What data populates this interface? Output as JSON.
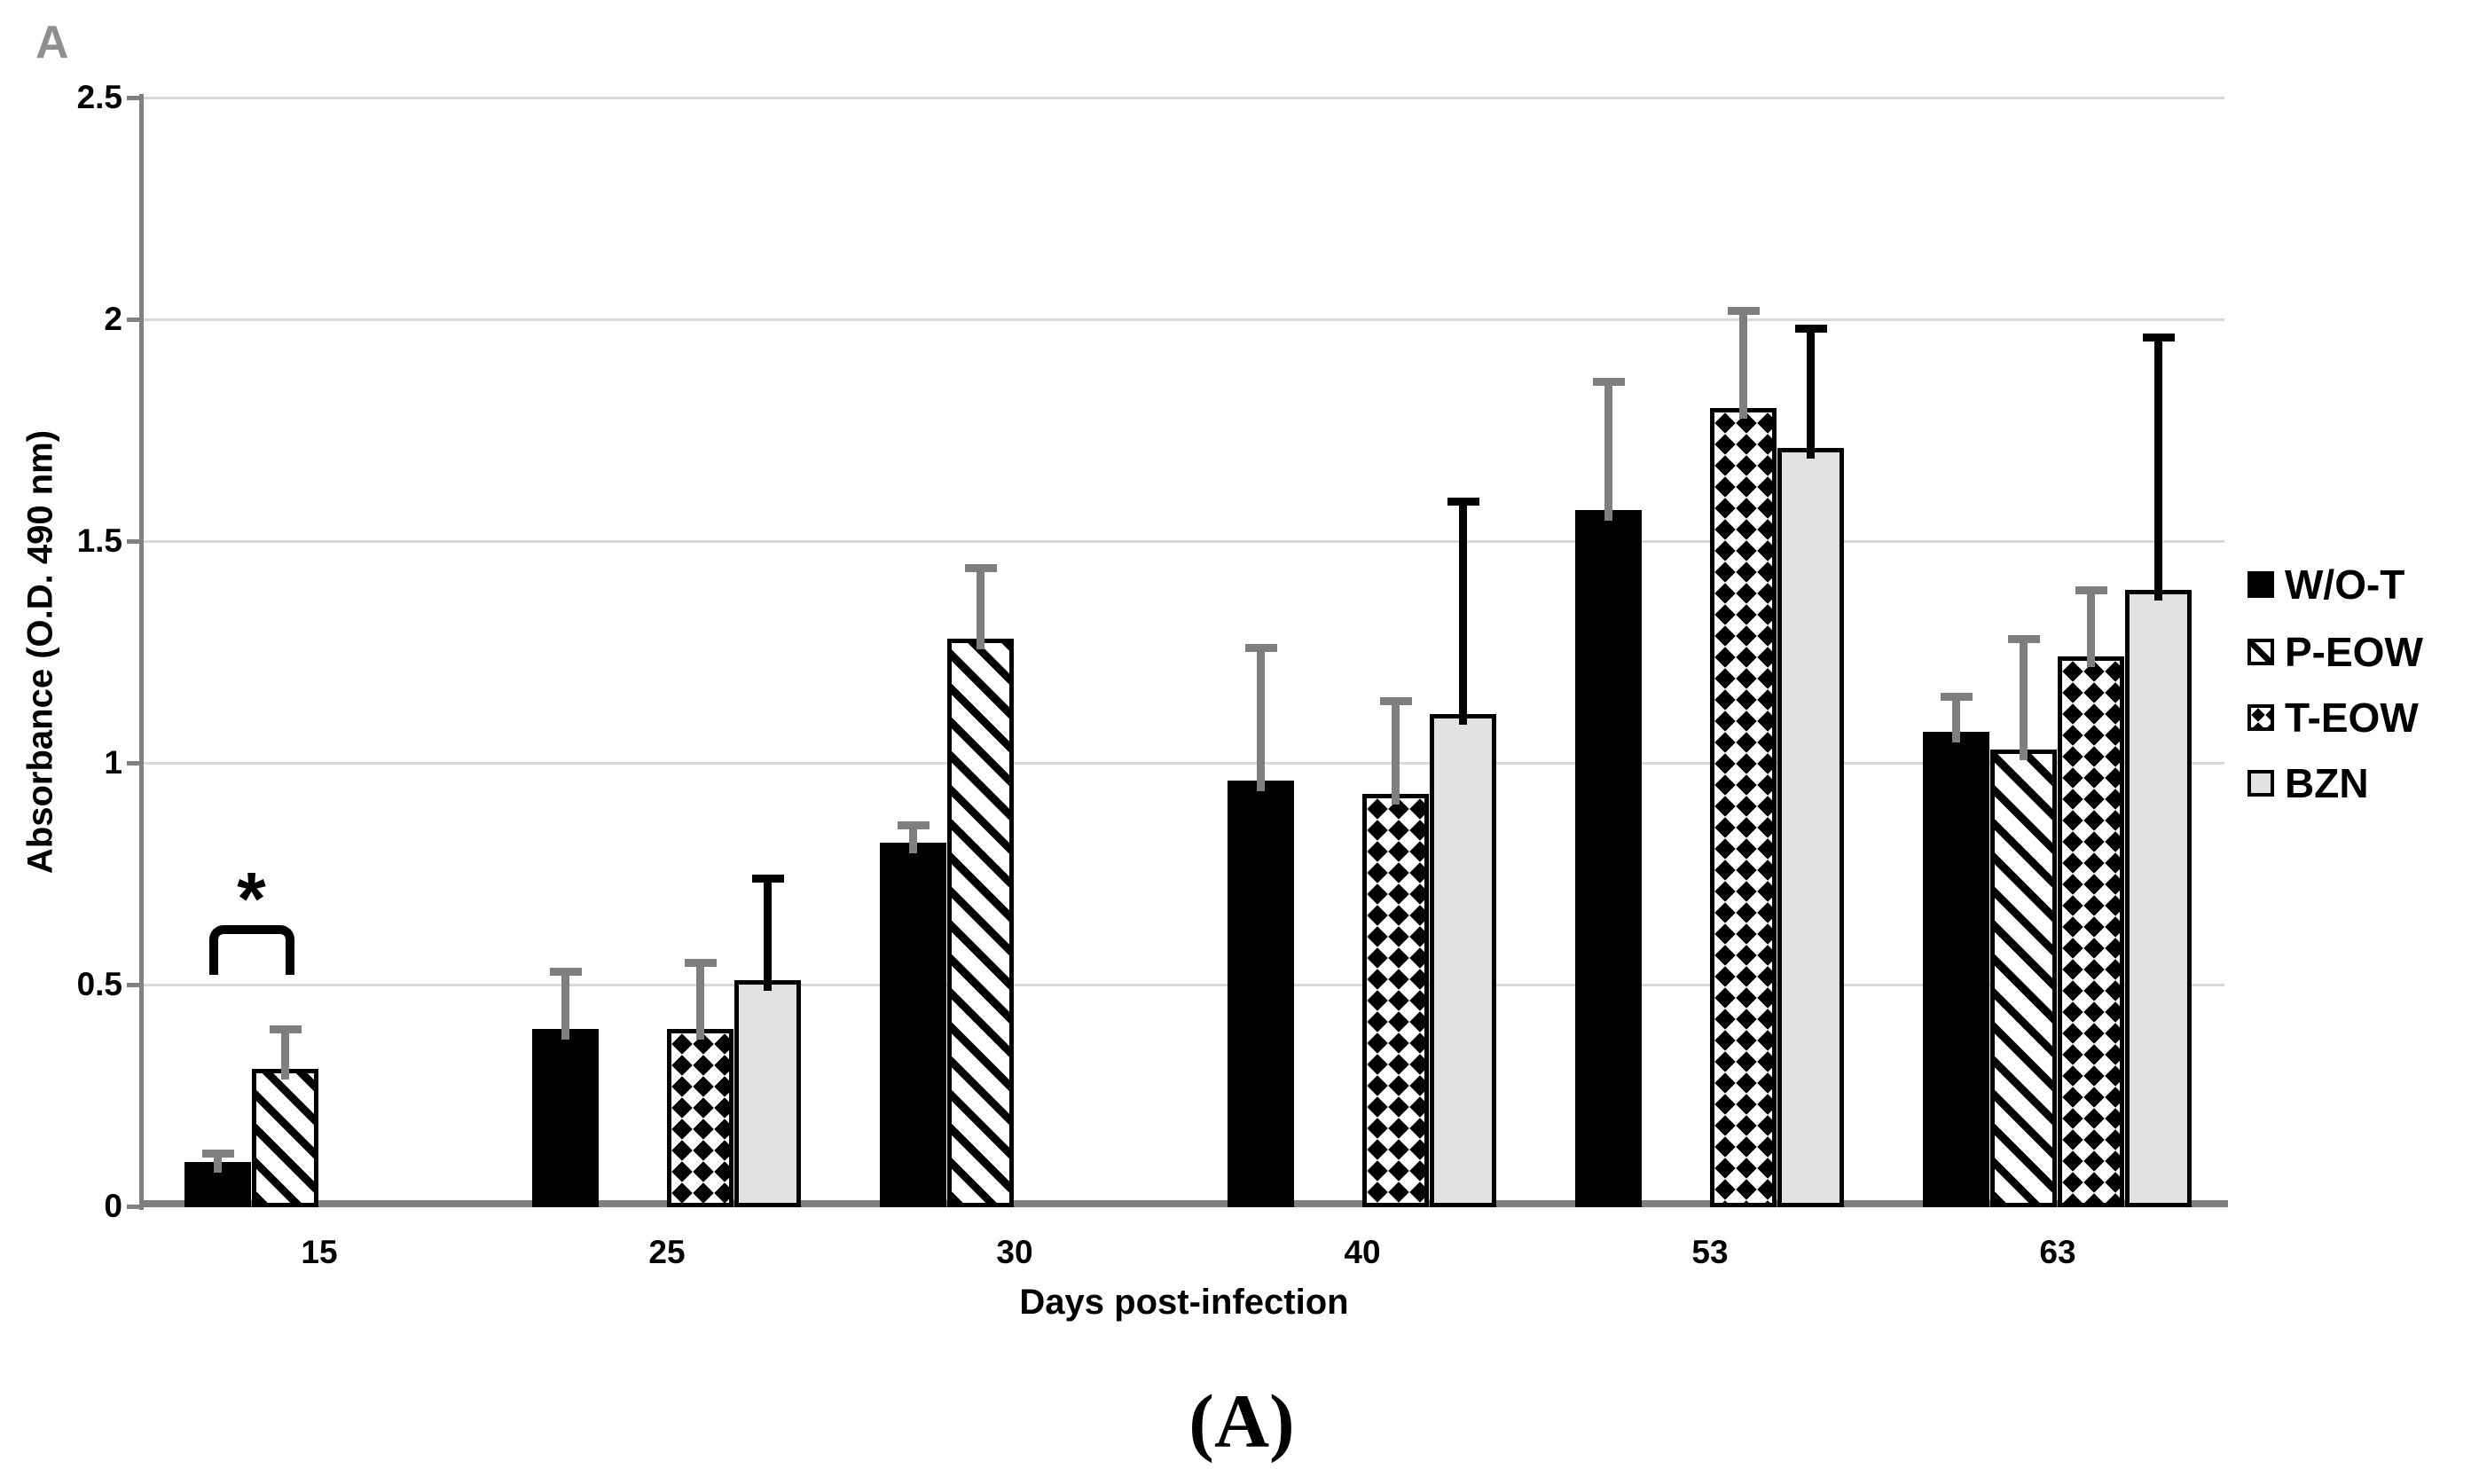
{
  "panel_label": "A",
  "caption": "(A)",
  "colors": {
    "background": "#ffffff",
    "axis": "#7f7f7f",
    "gridline": "#d9d9d9",
    "panel_letter": "#8f8f8f",
    "bar_black": "#000000",
    "bzn_fill": "#e2e2e2",
    "error_gray": "#7f7f7f",
    "error_black": "#000000"
  },
  "chart_data": {
    "type": "bar",
    "title": "",
    "xlabel": "Days post-infection",
    "ylabel": "Absorbance (O.D. 490 nm)",
    "categories": [
      "15",
      "25",
      "30",
      "40",
      "53",
      "63"
    ],
    "y_ticks": [
      "0",
      "0.5",
      "1",
      "1.5",
      "2",
      "2.5"
    ],
    "ylim": [
      0,
      2.5
    ],
    "grid": true,
    "legend_position": "right",
    "series": [
      {
        "name": "W/O-T",
        "pattern": "solid-black",
        "error_color": "#7f7f7f",
        "values": [
          0.1,
          0.4,
          0.82,
          0.96,
          1.57,
          1.07
        ],
        "errors_plus": [
          0.02,
          0.13,
          0.04,
          0.3,
          0.29,
          0.08
        ]
      },
      {
        "name": "P-EOW",
        "pattern": "diagonal-hatch",
        "error_color": "#7f7f7f",
        "values": [
          0.31,
          null,
          1.28,
          null,
          null,
          1.03
        ],
        "errors_plus": [
          0.09,
          null,
          0.16,
          null,
          null,
          0.25
        ]
      },
      {
        "name": "T-EOW",
        "pattern": "diamond-checker",
        "error_color": "#7f7f7f",
        "values": [
          null,
          0.4,
          null,
          0.93,
          1.8,
          1.24
        ],
        "errors_plus": [
          null,
          0.15,
          null,
          0.21,
          0.22,
          0.15
        ]
      },
      {
        "name": "BZN",
        "pattern": "light-gray",
        "error_color": "#000000",
        "values": [
          null,
          0.51,
          null,
          1.11,
          1.71,
          1.39
        ],
        "errors_plus": [
          null,
          0.23,
          null,
          0.48,
          0.27,
          0.57
        ]
      }
    ],
    "annotation": {
      "type": "significance-bracket",
      "label": "*",
      "category": "15",
      "between": [
        "W/O-T",
        "P-EOW"
      ],
      "bracket_y_value": 0.635
    }
  }
}
